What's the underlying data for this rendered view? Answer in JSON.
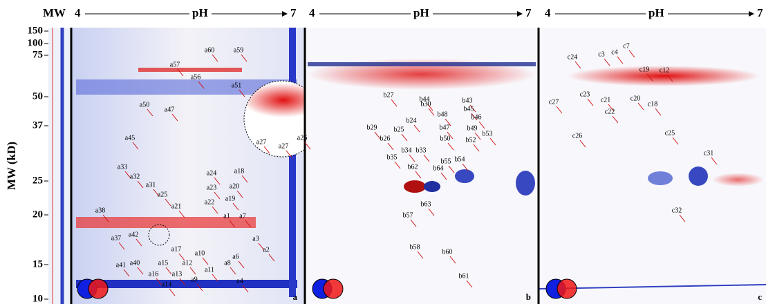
{
  "header": {
    "mw": "MW",
    "panels": [
      {
        "start": "4",
        "label": "pH",
        "end": "7"
      },
      {
        "start": "4",
        "label": "pH",
        "end": "7"
      },
      {
        "start": "4",
        "label": "pH",
        "end": "7"
      }
    ]
  },
  "y_axis": {
    "title": "MW (kD)",
    "ticks": [
      "150",
      "100",
      "75",
      "50",
      "37",
      "25",
      "20",
      "15",
      "10"
    ]
  },
  "panels": [
    {
      "letter": "a",
      "spots": [
        "a60",
        "a59",
        "a57",
        "a56",
        "a51",
        "a50",
        "a47",
        "a45",
        "a27",
        "a27",
        "a26",
        "a33",
        "a32",
        "a31",
        "a25",
        "a24",
        "a23",
        "a18",
        "a20",
        "a22",
        "a19",
        "a21",
        "a38",
        "a1",
        "a7",
        "a37",
        "a42",
        "a3",
        "a17",
        "a10",
        "a2",
        "a6",
        "a41",
        "a40",
        "a15",
        "a12",
        "a8",
        "a11",
        "a16",
        "a13",
        "a9",
        "a4",
        "a14"
      ]
    },
    {
      "letter": "b",
      "spots": [
        "b27",
        "b44",
        "b43",
        "b30",
        "b45",
        "b48",
        "b46",
        "b24",
        "b29",
        "b25",
        "b47",
        "b49",
        "b53",
        "b26",
        "b50",
        "b52",
        "b34",
        "b33",
        "b35",
        "b55",
        "b54",
        "b62",
        "b64",
        "b63",
        "b57",
        "b58",
        "b60",
        "b61"
      ]
    },
    {
      "letter": "c",
      "spots": [
        "c24",
        "c3",
        "c4",
        "c7",
        "c19",
        "c12",
        "c23",
        "c21",
        "c27",
        "c20",
        "c22",
        "c18",
        "c26",
        "c25",
        "c31",
        "c32"
      ]
    }
  ]
}
